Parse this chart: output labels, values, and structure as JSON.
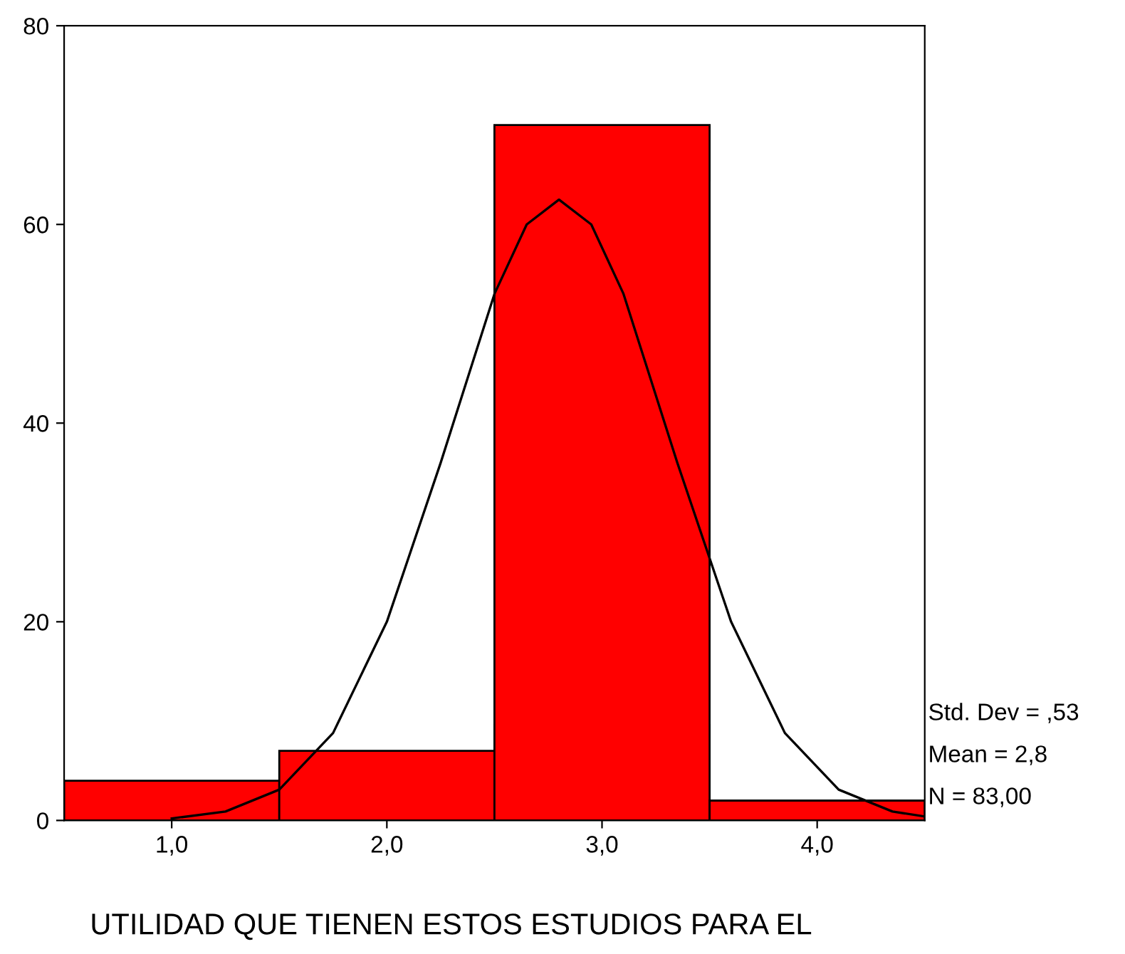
{
  "chart_data": {
    "type": "histogram",
    "bins": [
      0.5,
      1.5,
      2.5,
      3.5,
      4.5
    ],
    "values": [
      4,
      7,
      70,
      2
    ],
    "color": "#ff0000",
    "series": [
      {
        "type": "line",
        "color": "#000000",
        "x": [
          1.0,
          1.25,
          1.5,
          1.75,
          2.0,
          2.25,
          2.5,
          2.65,
          2.8,
          2.95,
          3.1,
          3.35,
          3.6,
          3.85,
          4.1,
          4.35,
          4.5
        ],
        "values": [
          0.2,
          0.9,
          3.1,
          8.8,
          20,
          36,
          53,
          60,
          62.5,
          60,
          53,
          36,
          20,
          8.8,
          3.1,
          0.9,
          0.4
        ]
      }
    ],
    "xlim": [
      0.5,
      4.5
    ],
    "ylim": [
      0,
      80
    ],
    "xticks": [
      {
        "value": 1,
        "label": "1,0"
      },
      {
        "value": 2,
        "label": "2,0"
      },
      {
        "value": 3,
        "label": "3,0"
      },
      {
        "value": 4,
        "label": "4,0"
      }
    ],
    "yticks": [
      0,
      20,
      40,
      60,
      80
    ],
    "xlabel": "UTILIDAD QUE TIENEN ESTOS ESTUDIOS PARA EL",
    "annotations": [
      "Std. Dev = ,53",
      "Mean = 2,8",
      "N = 83,00"
    ],
    "grid": false,
    "legend": false
  }
}
